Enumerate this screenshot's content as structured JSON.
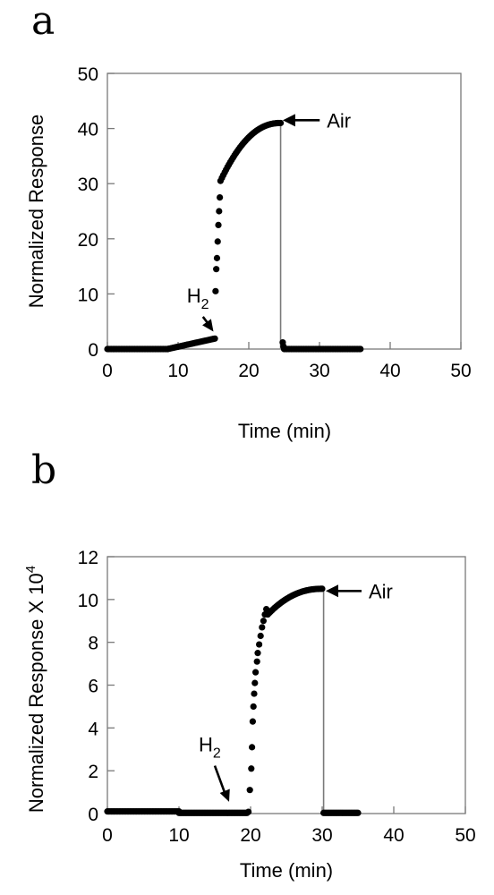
{
  "chart_data": [
    {
      "type": "scatter",
      "panel_label": "a",
      "title": "",
      "xlabel": "Time (min)",
      "ylabel": "Normalized Response",
      "xlim": [
        0,
        50
      ],
      "ylim": [
        0,
        50
      ],
      "xticks": [
        0,
        10,
        20,
        30,
        40,
        50
      ],
      "yticks": [
        0,
        10,
        20,
        30,
        40,
        50
      ],
      "grid": false,
      "annotations": [
        {
          "text": "H",
          "sub": "2",
          "x": 12.5,
          "y": 6.5,
          "kind": "arrow-down",
          "target_x": 15,
          "target_y": 2.2
        },
        {
          "text": "Air",
          "x": 27.5,
          "y": 41.5,
          "kind": "arrow-left",
          "target_x": 24.8,
          "target_y": 41.5
        }
      ],
      "vline_x": 24.5,
      "segments": [
        {
          "x_start": 0,
          "x_end": 8.5,
          "y_start": 0,
          "y_end": 0,
          "shape": "linear",
          "n": 45
        },
        {
          "x_start": 8.5,
          "x_end": 15.2,
          "y_start": 0,
          "y_end": 1.9,
          "shape": "linear",
          "n": 34
        },
        {
          "x_start": 16,
          "x_end": 24.5,
          "y_start": 30.5,
          "y_end": 41,
          "shape": "rise",
          "n": 44
        },
        {
          "x_start": 25,
          "x_end": 35.8,
          "y_start": 0,
          "y_end": 0,
          "shape": "linear",
          "n": 55
        }
      ],
      "points": [
        {
          "x": 15.3,
          "y": 10.5
        },
        {
          "x": 15.4,
          "y": 14.5
        },
        {
          "x": 15.5,
          "y": 16.5
        },
        {
          "x": 15.6,
          "y": 19.5
        },
        {
          "x": 15.7,
          "y": 22.5
        },
        {
          "x": 15.8,
          "y": 25.0
        },
        {
          "x": 15.9,
          "y": 27.5
        },
        {
          "x": 24.8,
          "y": 1.2
        },
        {
          "x": 24.9,
          "y": 0.5
        }
      ]
    },
    {
      "type": "scatter",
      "panel_label": "b",
      "title": "",
      "xlabel": "Time (min)",
      "ylabel": "Normalized Response X 10",
      "ylabel_sup": "4",
      "xlim": [
        0,
        50
      ],
      "ylim": [
        0,
        12
      ],
      "xticks": [
        0,
        10,
        20,
        30,
        40,
        50
      ],
      "yticks": [
        0,
        2,
        4,
        6,
        8,
        10,
        12
      ],
      "grid": false,
      "annotations": [
        {
          "text": "H",
          "sub": "2",
          "x": 14,
          "y": 2.4,
          "kind": "arrow-down",
          "target_x": 17,
          "target_y": 0.3
        },
        {
          "text": "Air",
          "x": 33,
          "y": 10.4,
          "kind": "arrow-left",
          "target_x": 30.5,
          "target_y": 10.4
        }
      ],
      "vline_x": 30.2,
      "segments": [
        {
          "x_start": 0,
          "x_end": 10,
          "y_start": 0.1,
          "y_end": 0.1,
          "shape": "linear",
          "n": 55
        },
        {
          "x_start": 10,
          "x_end": 19.5,
          "y_start": 0.03,
          "y_end": 0.03,
          "shape": "linear",
          "n": 52
        },
        {
          "x_start": 22.4,
          "x_end": 30,
          "y_start": 9.3,
          "y_end": 10.5,
          "shape": "rise",
          "n": 40
        },
        {
          "x_start": 30.2,
          "x_end": 35,
          "y_start": 0.03,
          "y_end": 0.03,
          "shape": "linear",
          "n": 26
        }
      ],
      "points": [
        {
          "x": 19.7,
          "y": 0.08
        },
        {
          "x": 19.9,
          "y": 1.1
        },
        {
          "x": 20.1,
          "y": 2.1
        },
        {
          "x": 20.2,
          "y": 3.1
        },
        {
          "x": 20.3,
          "y": 4.3
        },
        {
          "x": 20.4,
          "y": 5.0
        },
        {
          "x": 20.5,
          "y": 5.6
        },
        {
          "x": 20.6,
          "y": 6.1
        },
        {
          "x": 20.7,
          "y": 6.6
        },
        {
          "x": 20.9,
          "y": 7.1
        },
        {
          "x": 21.0,
          "y": 7.5
        },
        {
          "x": 21.2,
          "y": 7.9
        },
        {
          "x": 21.4,
          "y": 8.3
        },
        {
          "x": 21.6,
          "y": 8.7
        },
        {
          "x": 21.8,
          "y": 9.0
        },
        {
          "x": 22.0,
          "y": 9.3
        },
        {
          "x": 22.2,
          "y": 9.55
        }
      ]
    }
  ]
}
